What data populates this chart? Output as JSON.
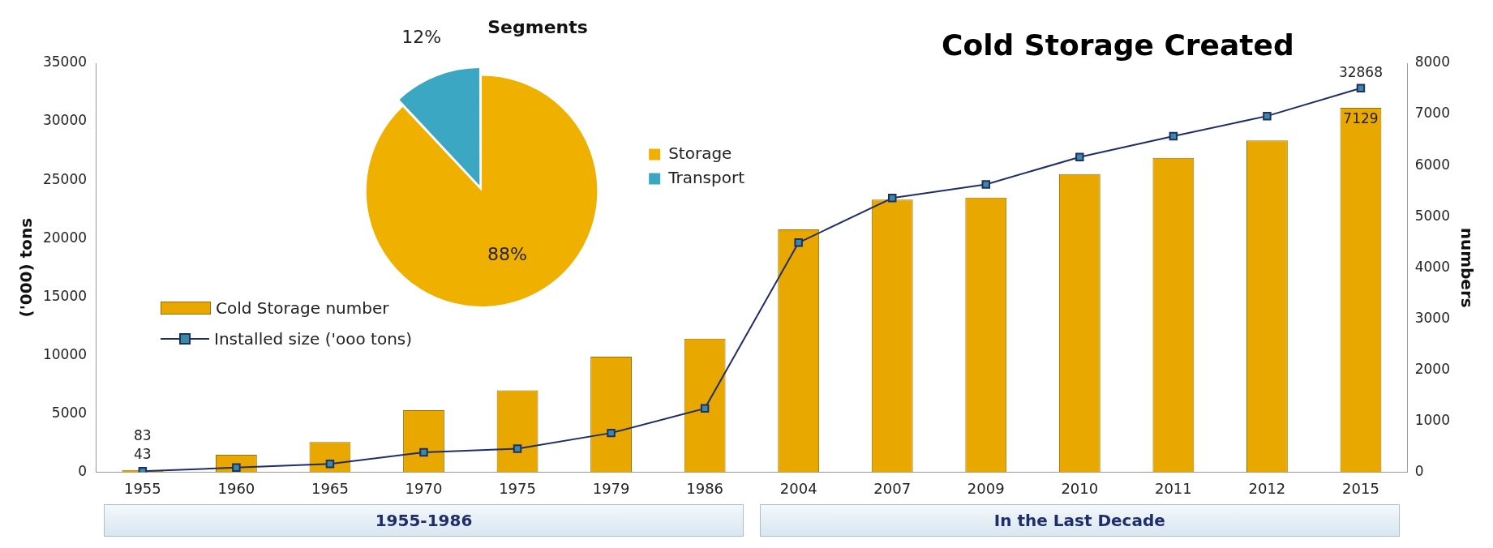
{
  "chart_data": [
    {
      "type": "bar",
      "title": "Cold Storage Created",
      "ylabel": "('000) tons",
      "y2label": "numbers",
      "categories": [
        "1955",
        "1960",
        "1965",
        "1970",
        "1975",
        "1979",
        "1986",
        "2004",
        "2007",
        "2009",
        "2010",
        "2011",
        "2012",
        "2015"
      ],
      "series": [
        {
          "name": "Cold Storage number",
          "type": "bar",
          "axis": "y2",
          "color": "#e8a800",
          "values": [
            43,
            340,
            590,
            1210,
            1600,
            2260,
            2610,
            4750,
            5330,
            5370,
            5830,
            6150,
            6490,
            7129
          ],
          "value_labels": [
            "43",
            null,
            null,
            null,
            null,
            null,
            null,
            null,
            null,
            null,
            null,
            null,
            null,
            "7129"
          ]
        },
        {
          "name": "Installed size ('ooo tons)",
          "type": "line",
          "color": "#1f2d6b",
          "marker": "square",
          "values": [
            83,
            390,
            700,
            1700,
            2000,
            3350,
            5450,
            19640,
            23460,
            24630,
            26970,
            28760,
            30480,
            32868
          ],
          "value_labels": [
            "83",
            null,
            null,
            null,
            null,
            null,
            null,
            null,
            null,
            null,
            null,
            null,
            null,
            "32868"
          ]
        }
      ],
      "ylim": [
        0,
        35000
      ],
      "yticks": [
        0,
        5000,
        10000,
        15000,
        20000,
        25000,
        30000,
        35000
      ],
      "y2lim": [
        0,
        8000
      ],
      "y2ticks": [
        0,
        1000,
        2000,
        3000,
        4000,
        5000,
        6000,
        7000,
        8000
      ],
      "legend": "left",
      "annotations": [
        "1955-1986",
        "In the Last Decade"
      ]
    },
    {
      "type": "pie",
      "title": "Segments",
      "categories": [
        "Storage",
        "Transport"
      ],
      "values": [
        88,
        12
      ],
      "colors": [
        "#f0b000",
        "#3ba7c2"
      ],
      "value_labels": [
        "88%",
        "12%"
      ],
      "legend": "right"
    }
  ]
}
